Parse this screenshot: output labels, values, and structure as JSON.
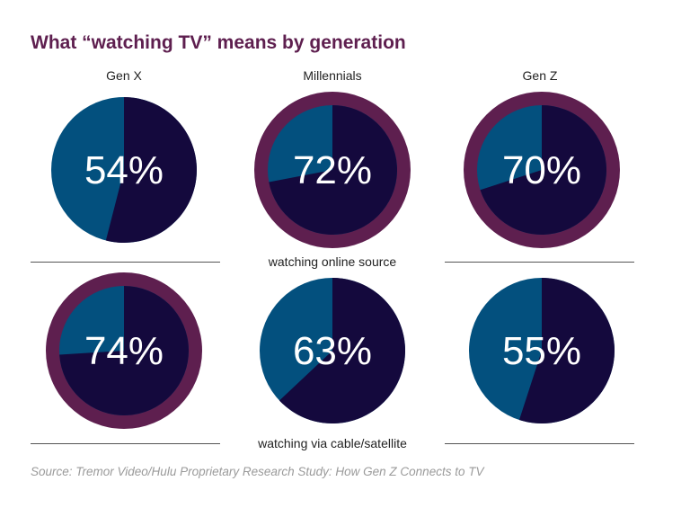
{
  "title": "What “watching TV” means by generation",
  "colors": {
    "majority": "#14093d",
    "minority": "#03507e",
    "highlight_ring": "#5e1f4f",
    "title": "#5e1f4f"
  },
  "chart_data": {
    "type": "pie",
    "title": "What “watching TV” means by generation",
    "columns": [
      "Gen X",
      "Millennials",
      "Gen Z"
    ],
    "rows": [
      {
        "label": "watching online source",
        "values": [
          54,
          72,
          70
        ],
        "highlighted": [
          false,
          true,
          true
        ]
      },
      {
        "label": "watching via cable/satellite",
        "values": [
          74,
          63,
          55
        ],
        "highlighted": [
          true,
          false,
          false
        ]
      }
    ],
    "value_labels": [
      [
        "54%",
        "72%",
        "70%"
      ],
      [
        "74%",
        "63%",
        "55%"
      ]
    ]
  },
  "source": "Source: Tremor Video/Hulu Proprietary Research Study: How Gen Z Connects to TV"
}
